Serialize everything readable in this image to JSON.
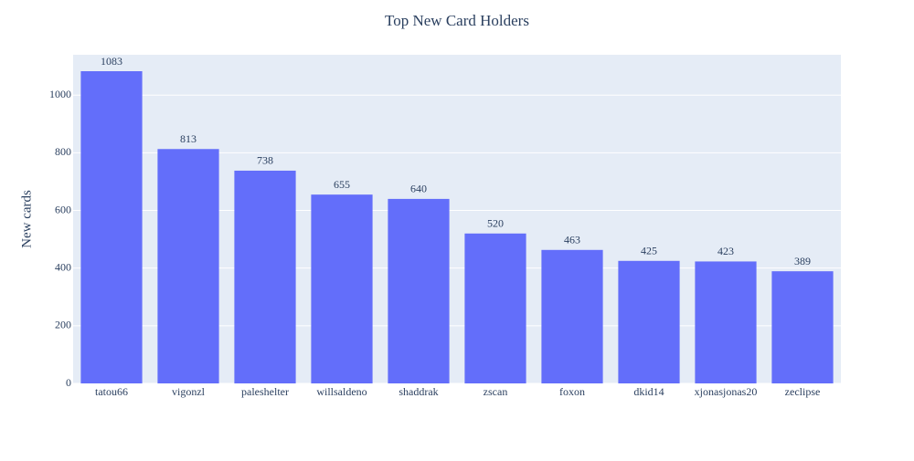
{
  "chart_data": {
    "type": "bar",
    "title": "Top New Card Holders",
    "y_label": "New cards",
    "categories": [
      "tatou66",
      "vigonzl",
      "paleshelter",
      "willsaldeno",
      "shaddrak",
      "zscan",
      "foxon",
      "dkid14",
      "xjonasjonas20",
      "zeclipse"
    ],
    "values": [
      1083,
      813,
      738,
      655,
      640,
      520,
      463,
      425,
      423,
      389
    ],
    "color": "#636efa",
    "ylim": [
      0,
      1140
    ],
    "yticks": [
      0,
      200,
      400,
      600,
      800,
      1000
    ],
    "grid": true
  }
}
